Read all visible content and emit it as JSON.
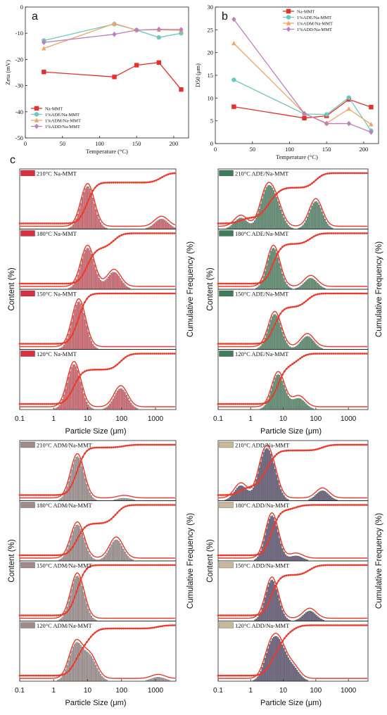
{
  "colors": {
    "na": "#e8302a",
    "ade": "#6cc9c1",
    "adm": "#f4a460",
    "add": "#bf7fbf",
    "curve": "#ee3a2a",
    "bar_na": "#dd4a55",
    "bar_ade": "#3f7d5a",
    "bar_adm": "#9a8585",
    "bar_add": "#4a3f63",
    "legend_na": "#d83040",
    "legend_ade": "#3f7d5a",
    "legend_adm": "#a08a8a",
    "legend_add": "#c9b99a"
  },
  "panel_letters": [
    "a",
    "b",
    "c"
  ],
  "chart_data": [
    {
      "type": "line",
      "panel": "a",
      "xlabel": "Temperature (°C)",
      "ylabel": "Zeta (mV)",
      "xlim": [
        0,
        220
      ],
      "ylim": [
        -50,
        0
      ],
      "xticks": [
        0,
        50,
        100,
        150,
        200
      ],
      "yticks": [
        0,
        -10,
        -20,
        -30,
        -40,
        -50
      ],
      "x": [
        25,
        120,
        150,
        180,
        210
      ],
      "legend_position": "bottom-left",
      "series": [
        {
          "name": "Na-MMT",
          "color": "#e8302a",
          "marker": "square",
          "values": [
            -24.8,
            -26.7,
            -22.2,
            -21.2,
            -31.5
          ]
        },
        {
          "name": "1%ADE/Na-MMT",
          "color": "#6cc9c1",
          "marker": "circle",
          "values": [
            -12.8,
            -6.5,
            -8.8,
            -11.6,
            -10.0
          ]
        },
        {
          "name": "1%ADM/Na-MMT",
          "color": "#f4a460",
          "marker": "triangle",
          "values": [
            -15.8,
            -6.3,
            -8.8,
            -8.7,
            -8.9
          ]
        },
        {
          "name": "1%ADD/Na-MMT",
          "color": "#bf7fbf",
          "marker": "diamond",
          "values": [
            -13.5,
            -10.4,
            -8.8,
            -8.5,
            -8.6
          ]
        }
      ]
    },
    {
      "type": "line",
      "panel": "b",
      "xlabel": "Temperature (°C)",
      "ylabel": "D50 (μm)",
      "xlim": [
        0,
        220
      ],
      "ylim": [
        0,
        30
      ],
      "xticks": [
        0,
        50,
        100,
        150,
        200
      ],
      "yticks": [
        0,
        5,
        10,
        15,
        20,
        25,
        30
      ],
      "x": [
        25,
        120,
        150,
        180,
        210
      ],
      "legend_position": "top-right",
      "series": [
        {
          "name": "Na-MMT",
          "color": "#e8302a",
          "marker": "square",
          "values": [
            8.1,
            5.6,
            6.1,
            9.7,
            8.0
          ]
        },
        {
          "name": "1%ADE/Na-MMT",
          "color": "#6cc9c1",
          "marker": "circle",
          "values": [
            14.0,
            6.5,
            6.4,
            10.1,
            2.8
          ]
        },
        {
          "name": "1%ADM/Na-MMT",
          "color": "#f4a460",
          "marker": "triangle",
          "values": [
            22.0,
            6.6,
            4.5,
            7.6,
            4.2
          ]
        },
        {
          "name": "1%ADD/Na-MMT",
          "color": "#bf7fbf",
          "marker": "diamond",
          "values": [
            27.3,
            6.6,
            4.4,
            4.4,
            2.5
          ]
        }
      ]
    },
    {
      "type": "bar",
      "panel": "c",
      "subtype": "particle-size-distribution",
      "xlabel": "Particle Size (μm)",
      "ylabel_left": "Content (%)",
      "ylabel_right": "Cumulative Frequency (%)",
      "xscale": "log",
      "xlim": [
        0.1,
        4000
      ],
      "xticks": [
        0.1,
        1,
        10,
        100,
        1000
      ],
      "xticklabels": [
        "0.1",
        "1",
        "10",
        "100",
        "1000"
      ],
      "groups": [
        {
          "name": "Na-MMT",
          "subplots": [
            {
              "label": "210°C Na-MMT",
              "peaks": [
                [
                  10,
                  0.85
                ],
                [
                  1500,
                  0.2
                ]
              ]
            },
            {
              "label": "180°C Na-MMT",
              "peaks": [
                [
                  10,
                  0.82
                ],
                [
                  60,
                  0.34
                ]
              ]
            },
            {
              "label": "150°C Na-MMT",
              "peaks": [
                [
                  5.5,
                  0.95
                ]
              ]
            },
            {
              "label": "120°C Na-MMT",
              "peaks": [
                [
                  4,
                  0.9
                ],
                [
                  95,
                  0.42
                ]
              ]
            }
          ]
        },
        {
          "name": "ADE/Na-MMT",
          "subplots": [
            {
              "label": "210°C ADE/Na-MMT",
              "peaks": [
                [
                  0.5,
                  0.22
                ],
                [
                  3,
                  0.68
                ],
                [
                  6,
                  0.45
                ],
                [
                  100,
                  0.55
                ]
              ]
            },
            {
              "label": "180°C ADE/Na-MMT",
              "peaks": [
                [
                  5,
                  0.82
                ],
                [
                  70,
                  0.22
                ]
              ]
            },
            {
              "label": "150°C ADE/Na-MMT",
              "peaks": [
                [
                  5.5,
                  0.7
                ],
                [
                  55,
                  0.26
                ]
              ]
            },
            {
              "label": "120°C ADE/Na-MMT",
              "peaks": [
                [
                  7,
                  0.7
                ],
                [
                  30,
                  0.22
                ]
              ]
            }
          ]
        },
        {
          "name": "ADM/Na-MMT",
          "subplots": [
            {
              "label": "210°C ADM/Na-MMT",
              "peaks": [
                [
                  5,
                  0.88
                ],
                [
                  120,
                  0.05
                ]
              ]
            },
            {
              "label": "180°C ADM/Na-MMT",
              "peaks": [
                [
                  5,
                  0.72
                ],
                [
                  70,
                  0.42
                ]
              ]
            },
            {
              "label": "150°C ADM/Na-MMT",
              "peaks": [
                [
                  5,
                  0.9
                ]
              ]
            },
            {
              "label": "120°C ADM/Na-MMT",
              "peaks": [
                [
                  4.5,
                  0.72
                ],
                [
                  12,
                  0.45
                ],
                [
                  1200,
                  0.08
                ]
              ]
            }
          ]
        },
        {
          "name": "ADD/Na-MMT",
          "subplots": [
            {
              "label": "210°C ADD/Na-MMT",
              "peaks": [
                [
                  0.5,
                  0.3
                ],
                [
                  2.5,
                  0.72
                ],
                [
                  4.5,
                  0.55
                ],
                [
                  160,
                  0.2
                ]
              ]
            },
            {
              "label": "180°C ADD/Na-MMT",
              "peaks": [
                [
                  4.5,
                  0.9
                ],
                [
                  25,
                  0.1
                ]
              ]
            },
            {
              "label": "150°C ADD/Na-MMT",
              "peaks": [
                [
                  4.5,
                  0.82
                ],
                [
                  65,
                  0.2
                ]
              ]
            },
            {
              "label": "120°C ADD/Na-MMT",
              "peaks": [
                [
                  4,
                  0.58
                ],
                [
                  8,
                  0.6
                ],
                [
                  20,
                  0.25
                ]
              ]
            }
          ]
        }
      ]
    }
  ]
}
